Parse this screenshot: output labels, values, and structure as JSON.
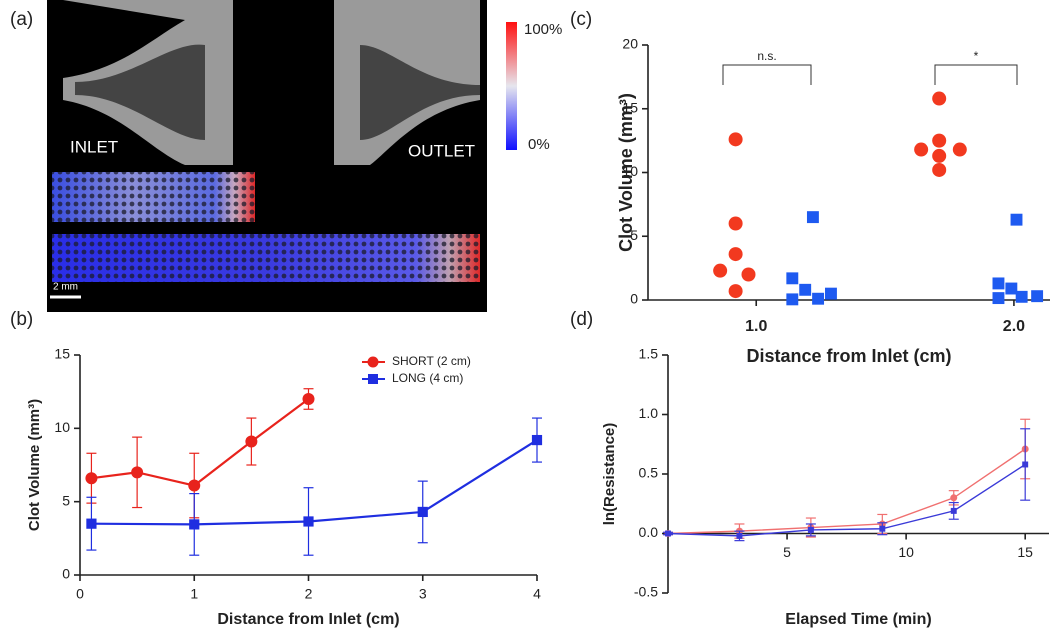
{
  "panel_labels": [
    "(a)",
    "(b)",
    "(c)",
    "(d)"
  ],
  "image": {
    "inlet": "INLET",
    "outlet": "OUTLET",
    "scale_bar": "2 mm",
    "colorbar_max": "100%",
    "colorbar_min": "0%"
  },
  "chart_data": [
    {
      "type": "line",
      "xlabel": "Distance from Inlet (cm)",
      "ylabel": "Clot Volume (mm³)",
      "xlim": [
        0,
        4
      ],
      "xticks": [
        0,
        1,
        2,
        3,
        4
      ],
      "ylim": [
        0,
        15
      ],
      "yticks": [
        0,
        5,
        10,
        15
      ],
      "legend": "top-right",
      "series": [
        {
          "name": "SHORT (2 cm)",
          "color": "#e8231c",
          "marker": "circle",
          "x": [
            0.1,
            0.5,
            1,
            1.5,
            2
          ],
          "values": [
            6.6,
            7.0,
            6.1,
            9.1,
            12.0
          ],
          "errors": [
            1.7,
            2.4,
            2.2,
            1.6,
            0.7
          ]
        },
        {
          "name": "LONG (4 cm)",
          "color": "#1f2ee0",
          "marker": "square",
          "x": [
            0.1,
            1,
            2,
            3,
            4
          ],
          "values": [
            3.5,
            3.45,
            3.65,
            4.3,
            9.2
          ],
          "errors": [
            1.8,
            2.1,
            2.3,
            2.1,
            1.5
          ]
        }
      ]
    },
    {
      "type": "scatter",
      "xlabel": "Distance from Inlet (cm)",
      "ylabel": "Clot Volume (mm³)",
      "xlim": [
        0.58,
        2.14
      ],
      "xticks": [
        {
          "value": 1,
          "label": "1.0"
        },
        {
          "value": 2,
          "label": "2.0"
        }
      ],
      "ylim": [
        0,
        20
      ],
      "yticks": [
        0,
        5,
        10,
        15,
        20
      ],
      "annotations": [
        "n.s.",
        "*"
      ],
      "series": [
        {
          "color": "#f2391f",
          "marker": "circle",
          "x": [
            0.92,
            0.92,
            0.92,
            0.86,
            0.97,
            0.92,
            1.71,
            1.71,
            1.64,
            1.79,
            1.71,
            1.71
          ],
          "values": [
            12.6,
            6.0,
            3.6,
            2.3,
            2.0,
            0.7,
            15.8,
            12.5,
            11.8,
            11.8,
            11.3,
            10.2
          ]
        },
        {
          "color": "#1e5af0",
          "marker": "square",
          "x": [
            1.14,
            1.14,
            1.19,
            1.22,
            1.24,
            1.29,
            2.01,
            1.94,
            1.99,
            1.94,
            2.03,
            2.09
          ],
          "values": [
            1.7,
            0.05,
            0.8,
            6.5,
            0.1,
            0.5,
            6.3,
            1.3,
            0.9,
            0.15,
            0.25,
            0.3
          ]
        }
      ]
    },
    {
      "type": "line",
      "xlabel": "Elapsed Time (min)",
      "ylabel": "ln(Resistance)",
      "xlim": [
        0,
        16
      ],
      "xticks": [
        5,
        10,
        15
      ],
      "ylim": [
        -0.5,
        1.5
      ],
      "yticks": [
        {
          "value": -0.5,
          "label": "-0.5"
        },
        {
          "value": 0,
          "label": "0.0"
        },
        {
          "value": 0.5,
          "label": "0.5"
        },
        {
          "value": 1,
          "label": "1.0"
        },
        {
          "value": 1.5,
          "label": "1.5"
        }
      ],
      "series": [
        {
          "color": "#f07070",
          "marker": "circle",
          "x": [
            0,
            3,
            6,
            9,
            12,
            15
          ],
          "values": [
            0,
            0.02,
            0.05,
            0.08,
            0.3,
            0.71
          ],
          "errors": [
            0.01,
            0.06,
            0.08,
            0.08,
            0.06,
            0.25
          ]
        },
        {
          "color": "#3a3ad8",
          "marker": "square",
          "x": [
            0,
            3,
            6,
            9,
            12,
            15
          ],
          "values": [
            0,
            -0.02,
            0.03,
            0.04,
            0.19,
            0.58
          ],
          "errors": [
            0.01,
            0.04,
            0.05,
            0.05,
            0.07,
            0.3
          ]
        }
      ]
    }
  ]
}
